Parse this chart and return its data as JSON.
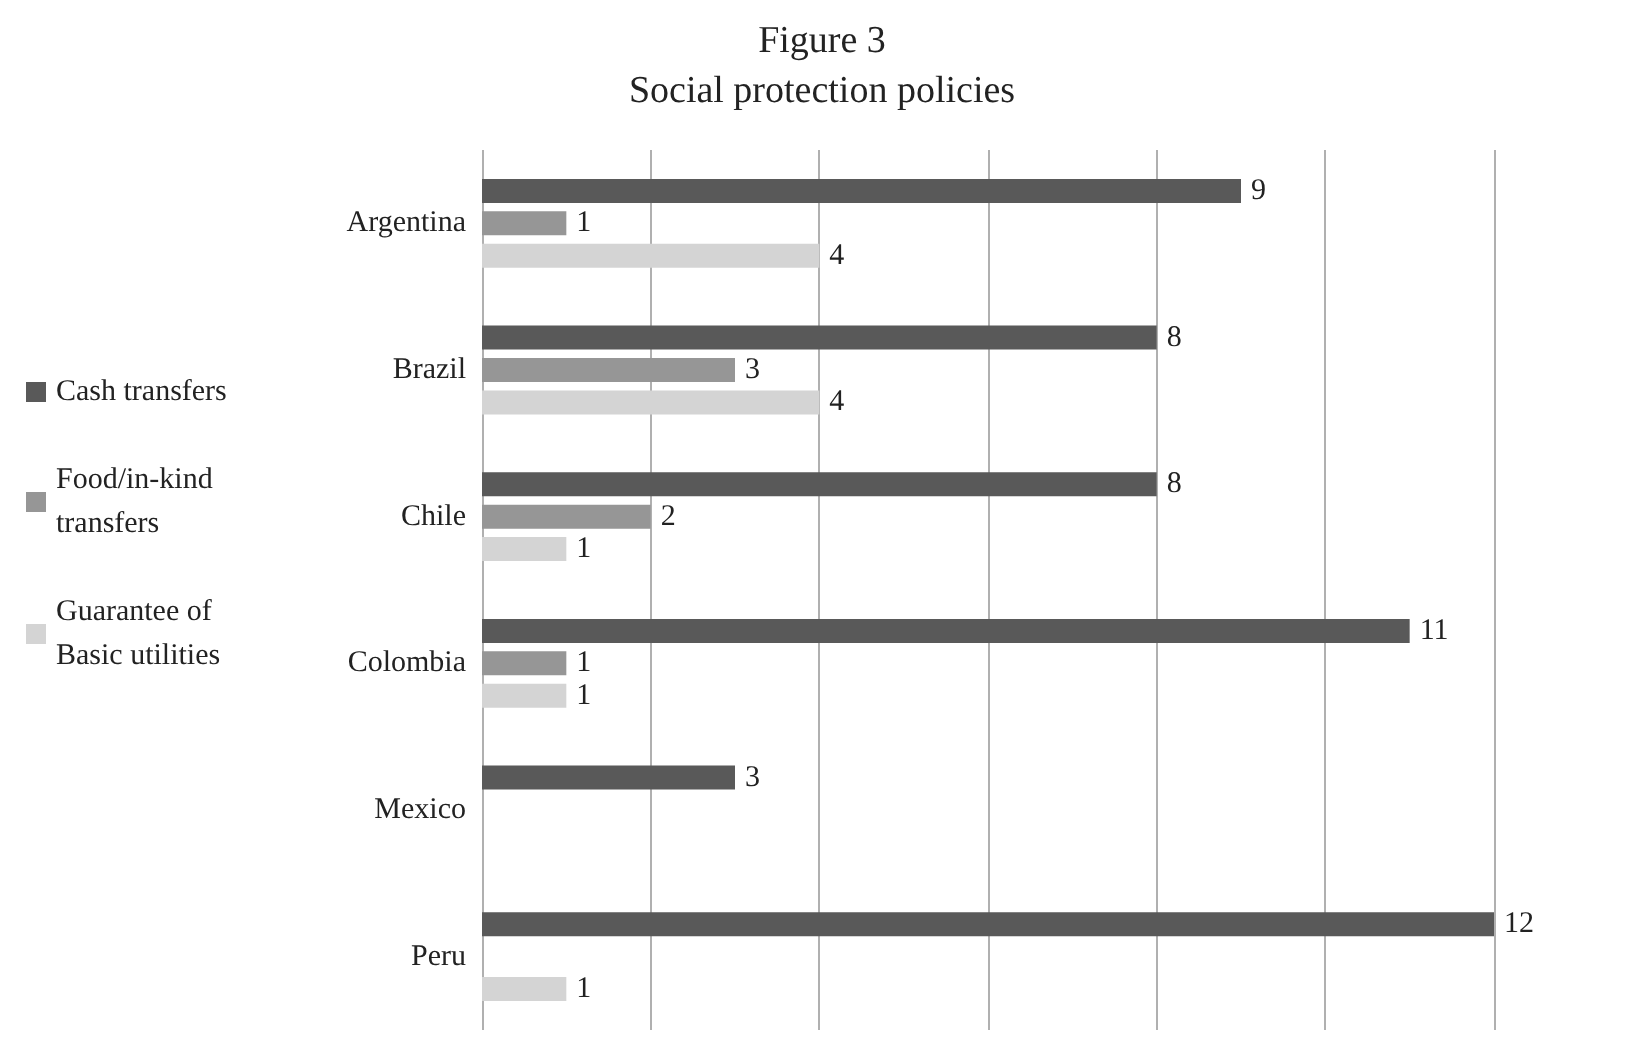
{
  "chart_data": {
    "type": "bar",
    "orientation": "horizontal",
    "title": "Figure 3",
    "subtitle": "Social protection policies",
    "categories": [
      "Argentina",
      "Brazil",
      "Chile",
      "Colombia",
      "Mexico",
      "Peru"
    ],
    "series": [
      {
        "name": "Cash transfers",
        "color": "#595959",
        "values": [
          9,
          8,
          8,
          11,
          3,
          12
        ]
      },
      {
        "name": "Food/in-kind transfers",
        "color": "#969696",
        "values": [
          1,
          3,
          2,
          1,
          null,
          null
        ]
      },
      {
        "name": "Guarantee of Basic utilities",
        "color": "#d4d4d4",
        "values": [
          4,
          4,
          1,
          1,
          null,
          1
        ]
      }
    ],
    "xlim": [
      0,
      12
    ],
    "xticks": [
      {
        "value": 0,
        "label": null
      },
      {
        "value": 2,
        "label": null
      },
      {
        "value": 4,
        "label": null
      },
      {
        "value": 6,
        "label": null
      },
      {
        "value": 8,
        "label": null
      },
      {
        "value": 10,
        "label": null
      },
      {
        "value": 12,
        "label": null
      }
    ],
    "tick_labels": "y",
    "grid": "x",
    "legend": "left",
    "data_labels": true
  }
}
